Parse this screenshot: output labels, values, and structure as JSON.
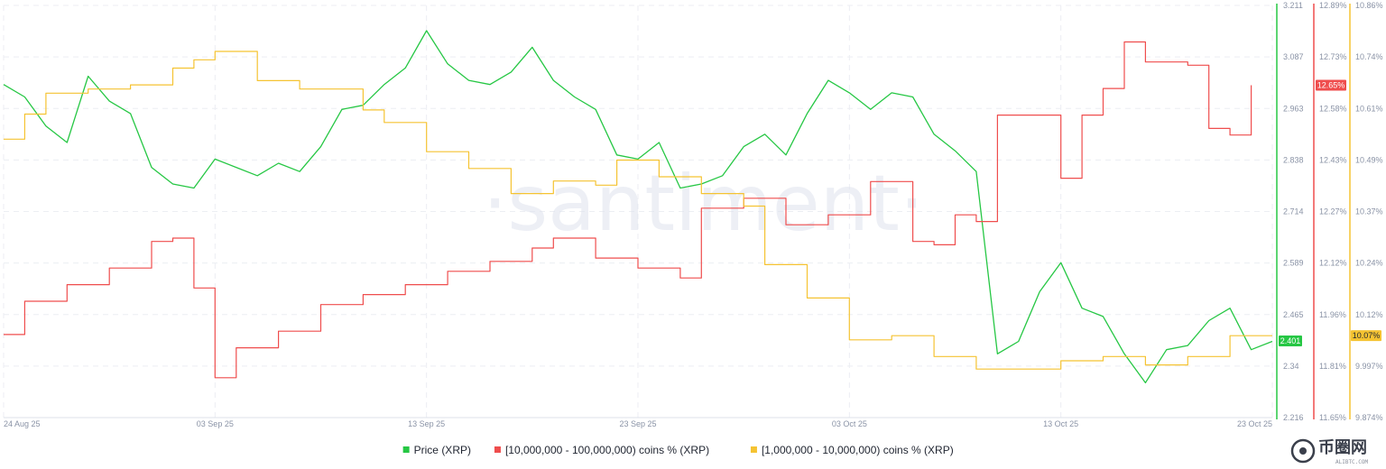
{
  "chart_data": {
    "type": "line",
    "watermark": "·santiment·",
    "x_ticks": [
      "24 Aug 25",
      "03 Sep 25",
      "13 Sep 25",
      "23 Sep 25",
      "03 Oct 25",
      "13 Oct 25",
      "23 Oct 25"
    ],
    "x_range": [
      "2025-08-24",
      "2025-10-23"
    ],
    "axes": {
      "price": {
        "ticks": [
          "3.211",
          "3.087",
          "2.963",
          "2.838",
          "2.714",
          "2.589",
          "2.465",
          "2.34",
          "2.216"
        ],
        "range": [
          2.216,
          3.211
        ],
        "color": "#26c744",
        "current": "2.401"
      },
      "large_holders": {
        "ticks": [
          "12.89%",
          "12.73%",
          "12.58%",
          "12.43%",
          "12.27%",
          "12.12%",
          "11.96%",
          "11.81%",
          "11.65%"
        ],
        "range": [
          11.65,
          12.89
        ],
        "color": "#ef4d4d",
        "current": "12.65%"
      },
      "mid_holders": {
        "ticks": [
          "10.86%",
          "10.74%",
          "10.61%",
          "10.49%",
          "10.37%",
          "10.24%",
          "10.12%",
          "9.997%",
          "9.874%"
        ],
        "range": [
          9.874,
          10.86
        ],
        "color": "#f5c332",
        "current": "10.07%"
      }
    },
    "series": [
      {
        "name": "Price (XRP)",
        "axis": "price",
        "color": "#26c744",
        "points": [
          [
            "2025-08-24",
            3.02
          ],
          [
            "2025-08-25",
            2.99
          ],
          [
            "2025-08-26",
            2.92
          ],
          [
            "2025-08-27",
            2.88
          ],
          [
            "2025-08-28",
            3.04
          ],
          [
            "2025-08-29",
            2.98
          ],
          [
            "2025-08-30",
            2.95
          ],
          [
            "2025-08-31",
            2.82
          ],
          [
            "2025-09-01",
            2.78
          ],
          [
            "2025-09-02",
            2.77
          ],
          [
            "2025-09-03",
            2.84
          ],
          [
            "2025-09-04",
            2.82
          ],
          [
            "2025-09-05",
            2.8
          ],
          [
            "2025-09-06",
            2.83
          ],
          [
            "2025-09-07",
            2.81
          ],
          [
            "2025-09-08",
            2.87
          ],
          [
            "2025-09-09",
            2.96
          ],
          [
            "2025-09-10",
            2.97
          ],
          [
            "2025-09-11",
            3.02
          ],
          [
            "2025-09-12",
            3.06
          ],
          [
            "2025-09-13",
            3.15
          ],
          [
            "2025-09-14",
            3.07
          ],
          [
            "2025-09-15",
            3.03
          ],
          [
            "2025-09-16",
            3.02
          ],
          [
            "2025-09-17",
            3.05
          ],
          [
            "2025-09-18",
            3.11
          ],
          [
            "2025-09-19",
            3.03
          ],
          [
            "2025-09-20",
            2.99
          ],
          [
            "2025-09-21",
            2.96
          ],
          [
            "2025-09-22",
            2.85
          ],
          [
            "2025-09-23",
            2.84
          ],
          [
            "2025-09-24",
            2.88
          ],
          [
            "2025-09-25",
            2.77
          ],
          [
            "2025-09-26",
            2.78
          ],
          [
            "2025-09-27",
            2.8
          ],
          [
            "2025-09-28",
            2.87
          ],
          [
            "2025-09-29",
            2.9
          ],
          [
            "2025-09-30",
            2.85
          ],
          [
            "2025-10-01",
            2.95
          ],
          [
            "2025-10-02",
            3.03
          ],
          [
            "2025-10-03",
            3.0
          ],
          [
            "2025-10-04",
            2.96
          ],
          [
            "2025-10-05",
            3.0
          ],
          [
            "2025-10-06",
            2.99
          ],
          [
            "2025-10-07",
            2.9
          ],
          [
            "2025-10-08",
            2.86
          ],
          [
            "2025-10-09",
            2.81
          ],
          [
            "2025-10-10",
            2.37
          ],
          [
            "2025-10-11",
            2.4
          ],
          [
            "2025-10-12",
            2.52
          ],
          [
            "2025-10-13",
            2.59
          ],
          [
            "2025-10-14",
            2.48
          ],
          [
            "2025-10-15",
            2.46
          ],
          [
            "2025-10-16",
            2.37
          ],
          [
            "2025-10-17",
            2.3
          ],
          [
            "2025-10-18",
            2.38
          ],
          [
            "2025-10-19",
            2.39
          ],
          [
            "2025-10-20",
            2.45
          ],
          [
            "2025-10-21",
            2.48
          ],
          [
            "2025-10-22",
            2.38
          ],
          [
            "2025-10-23",
            2.4
          ]
        ]
      },
      {
        "name": "[10,000,000 - 100,000,000) coins % (XRP)",
        "axis": "large_holders",
        "color": "#ef4d4d",
        "points": [
          [
            "2025-08-24",
            11.9
          ],
          [
            "2025-08-25",
            12.0
          ],
          [
            "2025-08-27",
            12.05
          ],
          [
            "2025-08-29",
            12.1
          ],
          [
            "2025-08-31",
            12.18
          ],
          [
            "2025-09-01",
            12.19
          ],
          [
            "2025-09-02",
            12.04
          ],
          [
            "2025-09-03",
            11.77
          ],
          [
            "2025-09-04",
            11.86
          ],
          [
            "2025-09-06",
            11.91
          ],
          [
            "2025-09-08",
            11.99
          ],
          [
            "2025-09-10",
            12.02
          ],
          [
            "2025-09-12",
            12.05
          ],
          [
            "2025-09-14",
            12.09
          ],
          [
            "2025-09-16",
            12.12
          ],
          [
            "2025-09-18",
            12.16
          ],
          [
            "2025-09-19",
            12.19
          ],
          [
            "2025-09-21",
            12.13
          ],
          [
            "2025-09-23",
            12.1
          ],
          [
            "2025-09-25",
            12.07
          ],
          [
            "2025-09-26",
            12.28
          ],
          [
            "2025-09-28",
            12.31
          ],
          [
            "2025-09-30",
            12.23
          ],
          [
            "2025-10-02",
            12.26
          ],
          [
            "2025-10-04",
            12.36
          ],
          [
            "2025-10-06",
            12.18
          ],
          [
            "2025-10-07",
            12.17
          ],
          [
            "2025-10-08",
            12.26
          ],
          [
            "2025-10-09",
            12.24
          ],
          [
            "2025-10-10",
            12.56
          ],
          [
            "2025-10-13",
            12.37
          ],
          [
            "2025-10-14",
            12.56
          ],
          [
            "2025-10-15",
            12.64
          ],
          [
            "2025-10-16",
            12.78
          ],
          [
            "2025-10-17",
            12.72
          ],
          [
            "2025-10-19",
            12.71
          ],
          [
            "2025-10-20",
            12.52
          ],
          [
            "2025-10-21",
            12.5
          ],
          [
            "2025-10-22",
            12.65
          ]
        ]
      },
      {
        "name": "[1,000,000 - 10,000,000) coins % (XRP)",
        "axis": "mid_holders",
        "color": "#f5c332",
        "points": [
          [
            "2025-08-24",
            10.54
          ],
          [
            "2025-08-25",
            10.6
          ],
          [
            "2025-08-26",
            10.65
          ],
          [
            "2025-08-28",
            10.66
          ],
          [
            "2025-08-30",
            10.67
          ],
          [
            "2025-09-01",
            10.71
          ],
          [
            "2025-09-02",
            10.73
          ],
          [
            "2025-09-03",
            10.75
          ],
          [
            "2025-09-05",
            10.68
          ],
          [
            "2025-09-07",
            10.66
          ],
          [
            "2025-09-10",
            10.61
          ],
          [
            "2025-09-11",
            10.58
          ],
          [
            "2025-09-13",
            10.51
          ],
          [
            "2025-09-15",
            10.47
          ],
          [
            "2025-09-17",
            10.41
          ],
          [
            "2025-09-19",
            10.44
          ],
          [
            "2025-09-21",
            10.43
          ],
          [
            "2025-09-22",
            10.49
          ],
          [
            "2025-09-24",
            10.45
          ],
          [
            "2025-09-26",
            10.41
          ],
          [
            "2025-09-28",
            10.38
          ],
          [
            "2025-09-29",
            10.24
          ],
          [
            "2025-10-01",
            10.16
          ],
          [
            "2025-10-03",
            10.06
          ],
          [
            "2025-10-05",
            10.07
          ],
          [
            "2025-10-07",
            10.02
          ],
          [
            "2025-10-09",
            9.99
          ],
          [
            "2025-10-11",
            9.99
          ],
          [
            "2025-10-13",
            10.01
          ],
          [
            "2025-10-15",
            10.02
          ],
          [
            "2025-10-17",
            10.0
          ],
          [
            "2025-10-19",
            10.02
          ],
          [
            "2025-10-21",
            10.07
          ],
          [
            "2025-10-23",
            10.07
          ]
        ]
      }
    ],
    "legend": {
      "placement": "bottom-center",
      "items": [
        "Price (XRP)",
        "[10,000,000 - 100,000,000) coins % (XRP)",
        "[1,000,000 - 10,000,000) coins % (XRP)"
      ]
    },
    "grid": true
  },
  "logo": {
    "text": "币圈网",
    "subtext": "ALIBTC.COM"
  }
}
